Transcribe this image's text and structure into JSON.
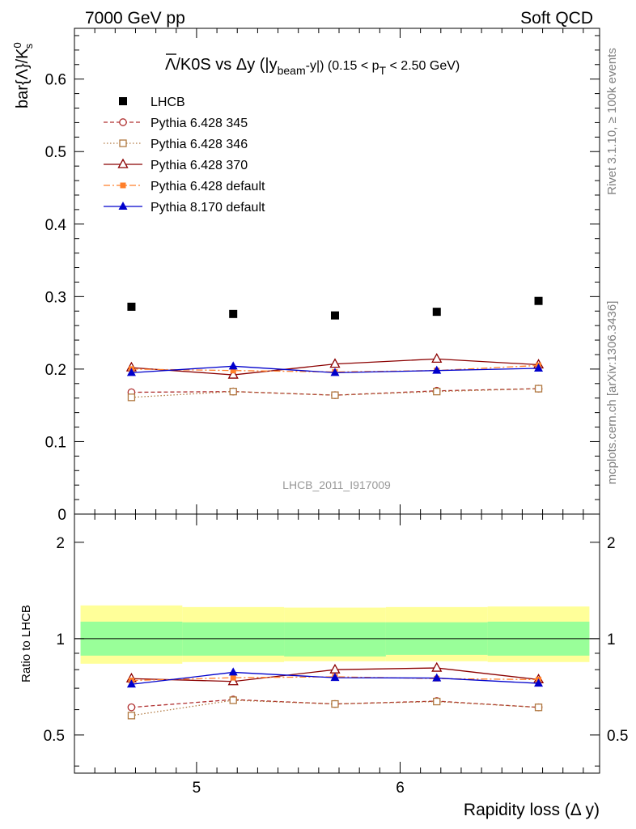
{
  "header": {
    "left": "7000 GeV pp",
    "right": "Soft QCD"
  },
  "side_labels": {
    "rivet": "Rivet 3.1.10, ≥ 100k events",
    "mcplots": "mcplots.cern.ch [arXiv:1306.3436]"
  },
  "watermark": "LHCB_2011_I917009",
  "colors": {
    "data": "#000000",
    "p345": "#b03030",
    "p346": "#b07840",
    "p370": "#8b0000",
    "p6def": "#ff7f2a",
    "p8def": "#0000cc",
    "band_inner": "#99ff99",
    "band_outer": "#ffff99"
  },
  "chart_data": [
    {
      "type": "scatter",
      "title_parts": {
        "main": "Λ/K0S vs Δy (|y",
        "sub1": "beam",
        "mid": "-y|) (0.15 < p",
        "sub2": "T",
        "end": " < 2.50 GeV)"
      },
      "ylabel_parts": {
        "main": "bar{Λ}/K",
        "sup": "0",
        "sub": "s"
      },
      "xlim": [
        4.4,
        6.98
      ],
      "ylim": [
        0,
        0.67
      ],
      "yticks": [
        "0",
        "0.1",
        "0.2",
        "0.3",
        "0.4",
        "0.5",
        "0.6"
      ],
      "x": [
        4.68,
        5.18,
        5.68,
        6.18,
        6.68
      ],
      "series": [
        {
          "name": "LHCB",
          "key": "data",
          "marker": "square-filled",
          "line": "none",
          "values": [
            0.286,
            0.276,
            0.274,
            0.279,
            0.294
          ]
        },
        {
          "name": "Pythia 6.428 345",
          "key": "p345",
          "marker": "circle-open",
          "line": "dashed",
          "values": [
            0.168,
            0.169,
            0.164,
            0.17,
            0.173
          ]
        },
        {
          "name": "Pythia 6.428 346",
          "key": "p346",
          "marker": "square-open",
          "line": "dotted",
          "values": [
            0.161,
            0.169,
            0.164,
            0.169,
            0.173
          ]
        },
        {
          "name": "Pythia 6.428 370",
          "key": "p370",
          "marker": "triangle-open",
          "line": "solid",
          "values": [
            0.202,
            0.192,
            0.207,
            0.214,
            0.206
          ]
        },
        {
          "name": "Pythia 6.428 default",
          "key": "p6def",
          "marker": "square-filled-small",
          "line": "dashdot",
          "values": [
            0.2,
            0.198,
            0.196,
            0.198,
            0.205
          ]
        },
        {
          "name": "Pythia 8.170 default",
          "key": "p8def",
          "marker": "triangle-filled",
          "line": "solid",
          "values": [
            0.195,
            0.204,
            0.195,
            0.198,
            0.201
          ]
        }
      ],
      "legend_placement": "top-left"
    },
    {
      "type": "line",
      "ylabel": "Ratio to LHCB",
      "xlabel": "Rapidity loss (Δ y)",
      "xlim": [
        4.4,
        6.98
      ],
      "ylim": [
        0.38,
        2.45
      ],
      "log_y": true,
      "xticks": [
        "5",
        "6"
      ],
      "yticks": [
        "0.5",
        "1",
        "2"
      ],
      "x_edges": [
        4.43,
        4.93,
        5.43,
        5.93,
        6.43,
        6.93
      ],
      "band_inner": [
        [
          0.885,
          1.13
        ],
        [
          0.885,
          1.125
        ],
        [
          0.88,
          1.125
        ],
        [
          0.89,
          1.125
        ],
        [
          0.885,
          1.13
        ]
      ],
      "band_outer": [
        [
          0.835,
          1.27
        ],
        [
          0.845,
          1.255
        ],
        [
          0.85,
          1.25
        ],
        [
          0.85,
          1.255
        ],
        [
          0.845,
          1.26
        ]
      ],
      "x": [
        4.68,
        5.18,
        5.68,
        6.18,
        6.68
      ],
      "series": [
        {
          "name": "Pythia 6.428 345",
          "key": "p345",
          "marker": "circle-open",
          "line": "dashed",
          "values": [
            0.61,
            0.645,
            0.625,
            0.638,
            0.61
          ]
        },
        {
          "name": "Pythia 6.428 346",
          "key": "p346",
          "marker": "square-open",
          "line": "dotted",
          "values": [
            0.575,
            0.642,
            0.625,
            0.636,
            0.61
          ]
        },
        {
          "name": "Pythia 6.428 370",
          "key": "p370",
          "marker": "triangle-open",
          "line": "solid",
          "values": [
            0.75,
            0.735,
            0.8,
            0.81,
            0.745
          ]
        },
        {
          "name": "Pythia 6.428 default",
          "key": "p6def",
          "marker": "square-filled-small",
          "line": "dashdot",
          "values": [
            0.74,
            0.755,
            0.76,
            0.75,
            0.745
          ]
        },
        {
          "name": "Pythia 8.170 default",
          "key": "p8def",
          "marker": "triangle-filled",
          "line": "solid",
          "values": [
            0.72,
            0.785,
            0.755,
            0.753,
            0.725
          ]
        }
      ]
    }
  ]
}
